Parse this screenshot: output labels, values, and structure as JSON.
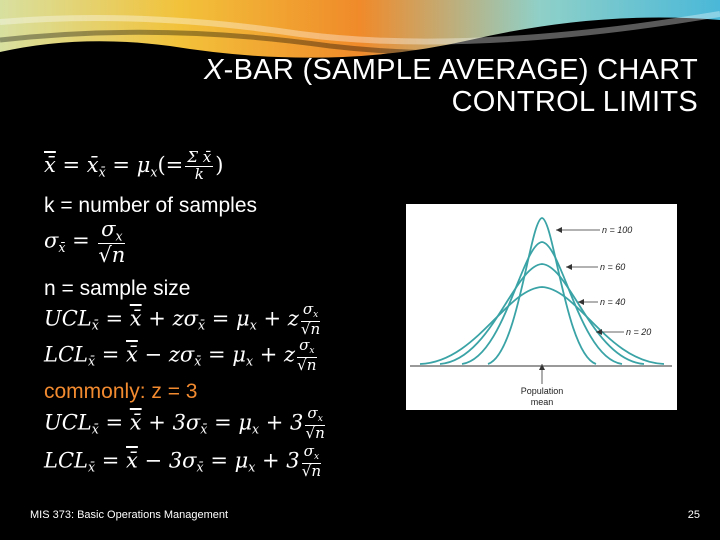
{
  "slide": {
    "title_italic": "X",
    "title_rest": "-BAR (SAMPLE AVERAGE) CHART",
    "title_line2": "CONTROL LIMITS",
    "line_k": "k = number of samples",
    "line_n": "n = sample size",
    "commonly": "commonly: z = 3",
    "footer": "MIS 373: Basic Operations Management",
    "page_number": "25"
  },
  "figure": {
    "labels": {
      "n100": "n = 100",
      "n60": "n = 60",
      "n40": "n = 40",
      "n20": "n = 20",
      "pop1": "Population",
      "pop2": "mean"
    },
    "curve_color": "#3aa3a6"
  }
}
